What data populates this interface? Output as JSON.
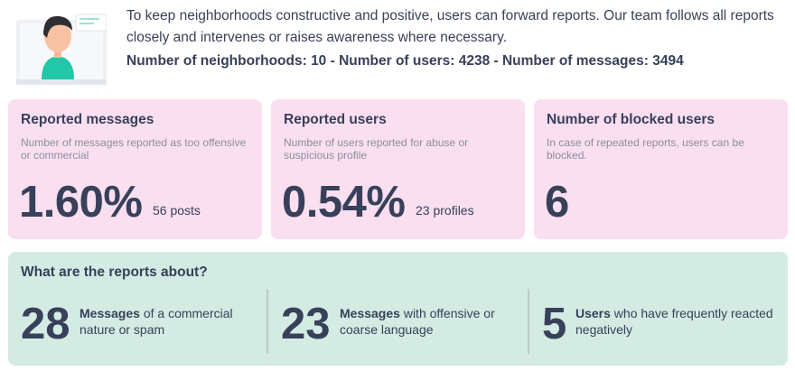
{
  "intro": {
    "text": "To keep neighborhoods constructive and positive, users can forward reports. Our team follows all reports closely and intervenes or raises awareness where necessary.",
    "stats": "Number of neighborhoods: 10 - Number of users: 4238 - Number of messages: 3494"
  },
  "cards": [
    {
      "title": "Reported messages",
      "desc": "Number of messages reported as too offensive or commercial",
      "value": "1.60%",
      "sub": "56 posts"
    },
    {
      "title": "Reported users",
      "desc": "Number of users reported for abuse or suspicious profile",
      "value": "0.54%",
      "sub": "23 profiles"
    },
    {
      "title": "Number of blocked users",
      "desc": "In case of repeated reports, users can be blocked.",
      "value": "6",
      "sub": ""
    }
  ],
  "about": {
    "title": "What are the reports about?",
    "items": [
      {
        "num": "28",
        "bold": "Messages",
        "line1": " of a commercial",
        "line2": "nature or spam"
      },
      {
        "num": "23",
        "bold": "Messages",
        "line1": " with offensive or",
        "line2": "coarse language"
      },
      {
        "num": "5",
        "bold": "Users",
        "line1": " who have frequently reacted",
        "line2": "negatively"
      }
    ]
  },
  "colors": {
    "card_pink": "#f9dff0",
    "panel_green": "#d3ebe2",
    "text_dark": "#38405a",
    "text_muted": "#8a8f9c"
  },
  "icons": {
    "illustration": "person-at-computer-illustration"
  }
}
